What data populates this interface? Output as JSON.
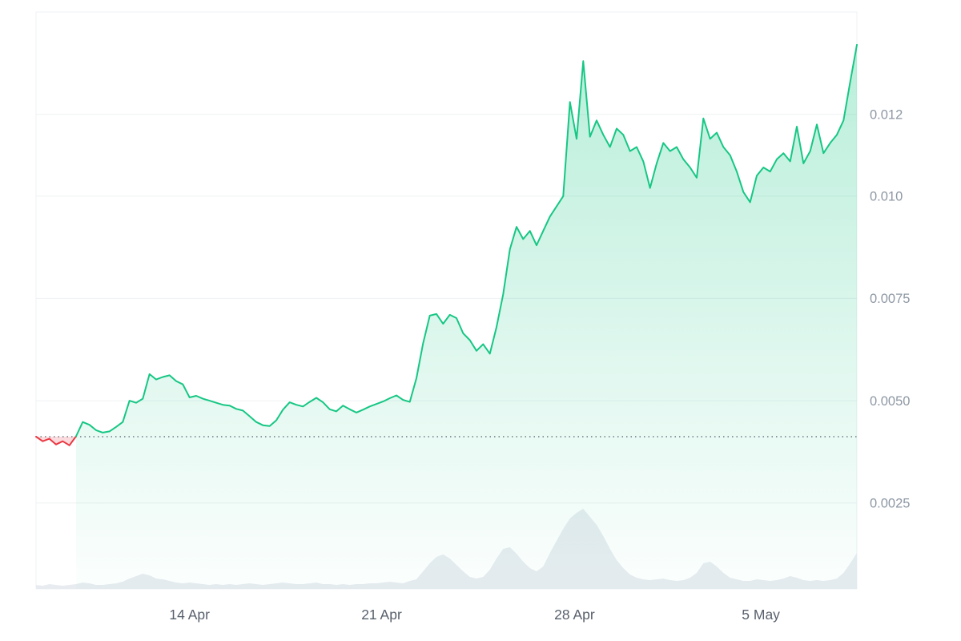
{
  "colors": {
    "up": "#16c784",
    "down": "#ea3943",
    "grid": "#eef1f4",
    "axis_label_y": "#8e98a4",
    "axis_label_x": "#58606c",
    "volume": "#e8ecf1",
    "baseline": "#3c4654",
    "background": "#ffffff"
  },
  "chart_data": {
    "type": "line",
    "title": "",
    "ylabel": "",
    "xlabel": "",
    "grid": true,
    "legend": false,
    "ylim": [
      0.0004,
      0.0145
    ],
    "x_ticks": [
      {
        "label": "14 Apr",
        "pos": 0.187
      },
      {
        "label": "21 Apr",
        "pos": 0.421
      },
      {
        "label": "28 Apr",
        "pos": 0.656
      },
      {
        "label": "5 May",
        "pos": 0.883
      }
    ],
    "y_ticks": [
      {
        "value": 0.012,
        "label": "0.012"
      },
      {
        "value": 0.01,
        "label": "0.010"
      },
      {
        "value": 0.0075,
        "label": "0.0075"
      },
      {
        "value": 0.005,
        "label": "0.0050"
      },
      {
        "value": 0.0025,
        "label": "0.0025"
      }
    ],
    "baseline": {
      "value": 0.00412,
      "style": "dotted"
    },
    "series": [
      {
        "name": "price",
        "type": "line",
        "unit": "price",
        "values": [
          0.00412,
          0.00401,
          0.00407,
          0.00393,
          0.00401,
          0.00391,
          0.00413,
          0.00448,
          0.00441,
          0.00428,
          0.00422,
          0.00425,
          0.00436,
          0.00448,
          0.005,
          0.00495,
          0.00505,
          0.00565,
          0.00552,
          0.00558,
          0.00562,
          0.00548,
          0.0054,
          0.00508,
          0.00512,
          0.00505,
          0.005,
          0.00495,
          0.0049,
          0.00488,
          0.0048,
          0.00476,
          0.00462,
          0.00448,
          0.0044,
          0.00438,
          0.00452,
          0.00478,
          0.00496,
          0.0049,
          0.00486,
          0.00497,
          0.00507,
          0.00496,
          0.00479,
          0.00474,
          0.00488,
          0.00479,
          0.00471,
          0.00478,
          0.00486,
          0.00492,
          0.00498,
          0.00506,
          0.00513,
          0.00502,
          0.00497,
          0.00555,
          0.0064,
          0.00708,
          0.00712,
          0.00688,
          0.0071,
          0.00702,
          0.00665,
          0.00648,
          0.00622,
          0.00638,
          0.00615,
          0.0068,
          0.0076,
          0.0087,
          0.00925,
          0.00895,
          0.00915,
          0.0088,
          0.00915,
          0.0095,
          0.00975,
          0.01,
          0.0123,
          0.0114,
          0.0133,
          0.01145,
          0.01185,
          0.0115,
          0.0112,
          0.01165,
          0.0115,
          0.0111,
          0.0112,
          0.01085,
          0.0102,
          0.0108,
          0.0113,
          0.0111,
          0.0112,
          0.0109,
          0.0107,
          0.01045,
          0.0119,
          0.0114,
          0.01155,
          0.0112,
          0.011,
          0.0106,
          0.0101,
          0.00985,
          0.0105,
          0.0107,
          0.0106,
          0.0109,
          0.01105,
          0.01085,
          0.0117,
          0.0108,
          0.0111,
          0.01175,
          0.01105,
          0.0113,
          0.0115,
          0.01185,
          0.0128,
          0.0137
        ]
      },
      {
        "name": "volume",
        "type": "area",
        "unit": "relative",
        "values": [
          0.05,
          0.04,
          0.06,
          0.05,
          0.04,
          0.05,
          0.06,
          0.08,
          0.07,
          0.05,
          0.05,
          0.06,
          0.07,
          0.09,
          0.13,
          0.16,
          0.19,
          0.17,
          0.13,
          0.12,
          0.1,
          0.08,
          0.07,
          0.08,
          0.07,
          0.06,
          0.05,
          0.06,
          0.05,
          0.06,
          0.05,
          0.06,
          0.07,
          0.06,
          0.05,
          0.06,
          0.07,
          0.08,
          0.07,
          0.06,
          0.06,
          0.07,
          0.08,
          0.06,
          0.06,
          0.05,
          0.06,
          0.05,
          0.06,
          0.06,
          0.07,
          0.07,
          0.08,
          0.09,
          0.08,
          0.07,
          0.1,
          0.12,
          0.22,
          0.32,
          0.4,
          0.43,
          0.38,
          0.3,
          0.22,
          0.15,
          0.13,
          0.15,
          0.24,
          0.38,
          0.5,
          0.52,
          0.44,
          0.34,
          0.26,
          0.22,
          0.28,
          0.45,
          0.6,
          0.75,
          0.88,
          0.95,
          1.0,
          0.9,
          0.8,
          0.66,
          0.5,
          0.36,
          0.26,
          0.18,
          0.14,
          0.12,
          0.11,
          0.12,
          0.13,
          0.11,
          0.1,
          0.11,
          0.14,
          0.2,
          0.32,
          0.34,
          0.28,
          0.2,
          0.14,
          0.12,
          0.1,
          0.1,
          0.12,
          0.11,
          0.1,
          0.11,
          0.13,
          0.16,
          0.14,
          0.11,
          0.1,
          0.11,
          0.1,
          0.11,
          0.13,
          0.2,
          0.32,
          0.45
        ]
      }
    ]
  }
}
